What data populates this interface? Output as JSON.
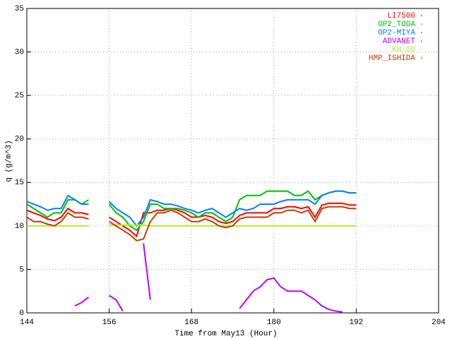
{
  "chart_data": {
    "type": "line",
    "xlabel": "Time from May13 (Hour)",
    "ylabel": "q (g/m^3)",
    "xlim": [
      144,
      204
    ],
    "xticks": [
      144,
      156,
      168,
      180,
      192,
      204
    ],
    "ylim": [
      0,
      35
    ],
    "yticks": [
      0,
      5,
      10,
      15,
      20,
      25,
      30,
      35
    ],
    "grid": true,
    "legend": "top-right",
    "x": [
      144,
      145,
      146,
      147,
      148,
      149,
      150,
      151,
      152,
      153,
      154,
      155,
      156,
      157,
      158,
      159,
      160,
      161,
      162,
      163,
      164,
      165,
      166,
      167,
      168,
      169,
      170,
      171,
      172,
      173,
      174,
      175,
      176,
      177,
      178,
      179,
      180,
      181,
      182,
      183,
      184,
      185,
      186,
      187,
      188,
      189,
      190,
      191,
      192
    ],
    "series": [
      {
        "name": "LI7500",
        "color": "#ff0000",
        "values": [
          11.8,
          11.5,
          11.2,
          10.8,
          10.6,
          11,
          12,
          11.5,
          11.5,
          11.3,
          null,
          null,
          11,
          10.5,
          10,
          9.5,
          8.8,
          11.5,
          11.5,
          11.8,
          11.8,
          12,
          11.8,
          11.5,
          11,
          11,
          11.2,
          11,
          10.5,
          10.3,
          10.5,
          11.2,
          11.5,
          11.5,
          11.5,
          11.5,
          12,
          12,
          12.2,
          12.2,
          12,
          12.2,
          11,
          12.4,
          12.6,
          12.6,
          12.6,
          12.4,
          12.4
        ]
      },
      {
        "name": "OP2_TODA",
        "color": "#00c000",
        "values": [
          12.5,
          12,
          11.5,
          11,
          11.5,
          11.5,
          13,
          13,
          12.5,
          13,
          null,
          null,
          12.5,
          11.5,
          11,
          10,
          9.5,
          10.5,
          12.5,
          12.5,
          12,
          12,
          12,
          11.8,
          11.5,
          11,
          11.5,
          11.5,
          11,
          10.5,
          11,
          13,
          13.5,
          13.5,
          13.5,
          14,
          14,
          14,
          14,
          13.5,
          13.5,
          14,
          13,
          13.5,
          13.8,
          14,
          14,
          13.8,
          13.8
        ]
      },
      {
        "name": "OP2-MIYA",
        "color": "#0080ff",
        "values": [
          12.8,
          12.5,
          12.2,
          11.8,
          12,
          12,
          13.5,
          13,
          12.5,
          12.5,
          null,
          null,
          12.8,
          12,
          11.5,
          11,
          10,
          11,
          13,
          12.8,
          12.5,
          12.5,
          12.3,
          12,
          11.8,
          11.5,
          11.8,
          12,
          11.5,
          11,
          11.5,
          12,
          11.8,
          12,
          12.5,
          12.5,
          12.5,
          12.8,
          13,
          13,
          13,
          13,
          12.5,
          13.5,
          13.8,
          14,
          14,
          13.8,
          13.8
        ]
      },
      {
        "name": "ADVANET",
        "color": "#c000ff",
        "values": [
          null,
          null,
          null,
          null,
          null,
          null,
          null,
          0.8,
          1.2,
          1.8,
          null,
          null,
          2,
          1.5,
          0.2,
          null,
          null,
          8,
          1.5,
          null,
          null,
          null,
          null,
          null,
          null,
          null,
          null,
          null,
          null,
          null,
          null,
          0.5,
          1.5,
          2.5,
          3,
          3.8,
          4,
          3,
          2.5,
          2.5,
          2.5,
          2,
          1.5,
          0.8,
          0.4,
          0.2,
          0.1,
          null,
          null
        ]
      },
      {
        "name": "KH-20",
        "color": "#b0f020",
        "values": [
          10,
          10,
          10,
          10,
          10,
          10,
          10,
          10,
          10,
          10,
          null,
          null,
          10.1,
          10.1,
          10.1,
          10.1,
          10.1,
          10.1,
          10,
          10,
          10,
          10,
          10,
          10,
          10,
          10,
          10,
          10,
          10,
          10,
          10,
          10,
          10,
          10,
          10,
          10,
          10,
          10,
          10,
          10,
          10,
          10,
          10,
          10,
          10,
          10,
          10,
          10,
          10
        ]
      },
      {
        "name": "HMP_ISHIDA",
        "color": "#c04000",
        "values": [
          11,
          10.5,
          10.5,
          10.2,
          10,
          10.5,
          11.5,
          11,
          11,
          10.8,
          null,
          null,
          10.5,
          10,
          9.5,
          9,
          8.3,
          8.5,
          10.5,
          11.5,
          11.5,
          11.8,
          11.5,
          11,
          10.5,
          10.5,
          10.8,
          10.5,
          10,
          9.8,
          10,
          10.8,
          11,
          11,
          11,
          11,
          11.5,
          11.5,
          11.8,
          11.8,
          11.5,
          11.8,
          10.5,
          12,
          12.2,
          12.2,
          12.2,
          12,
          12
        ]
      }
    ]
  }
}
